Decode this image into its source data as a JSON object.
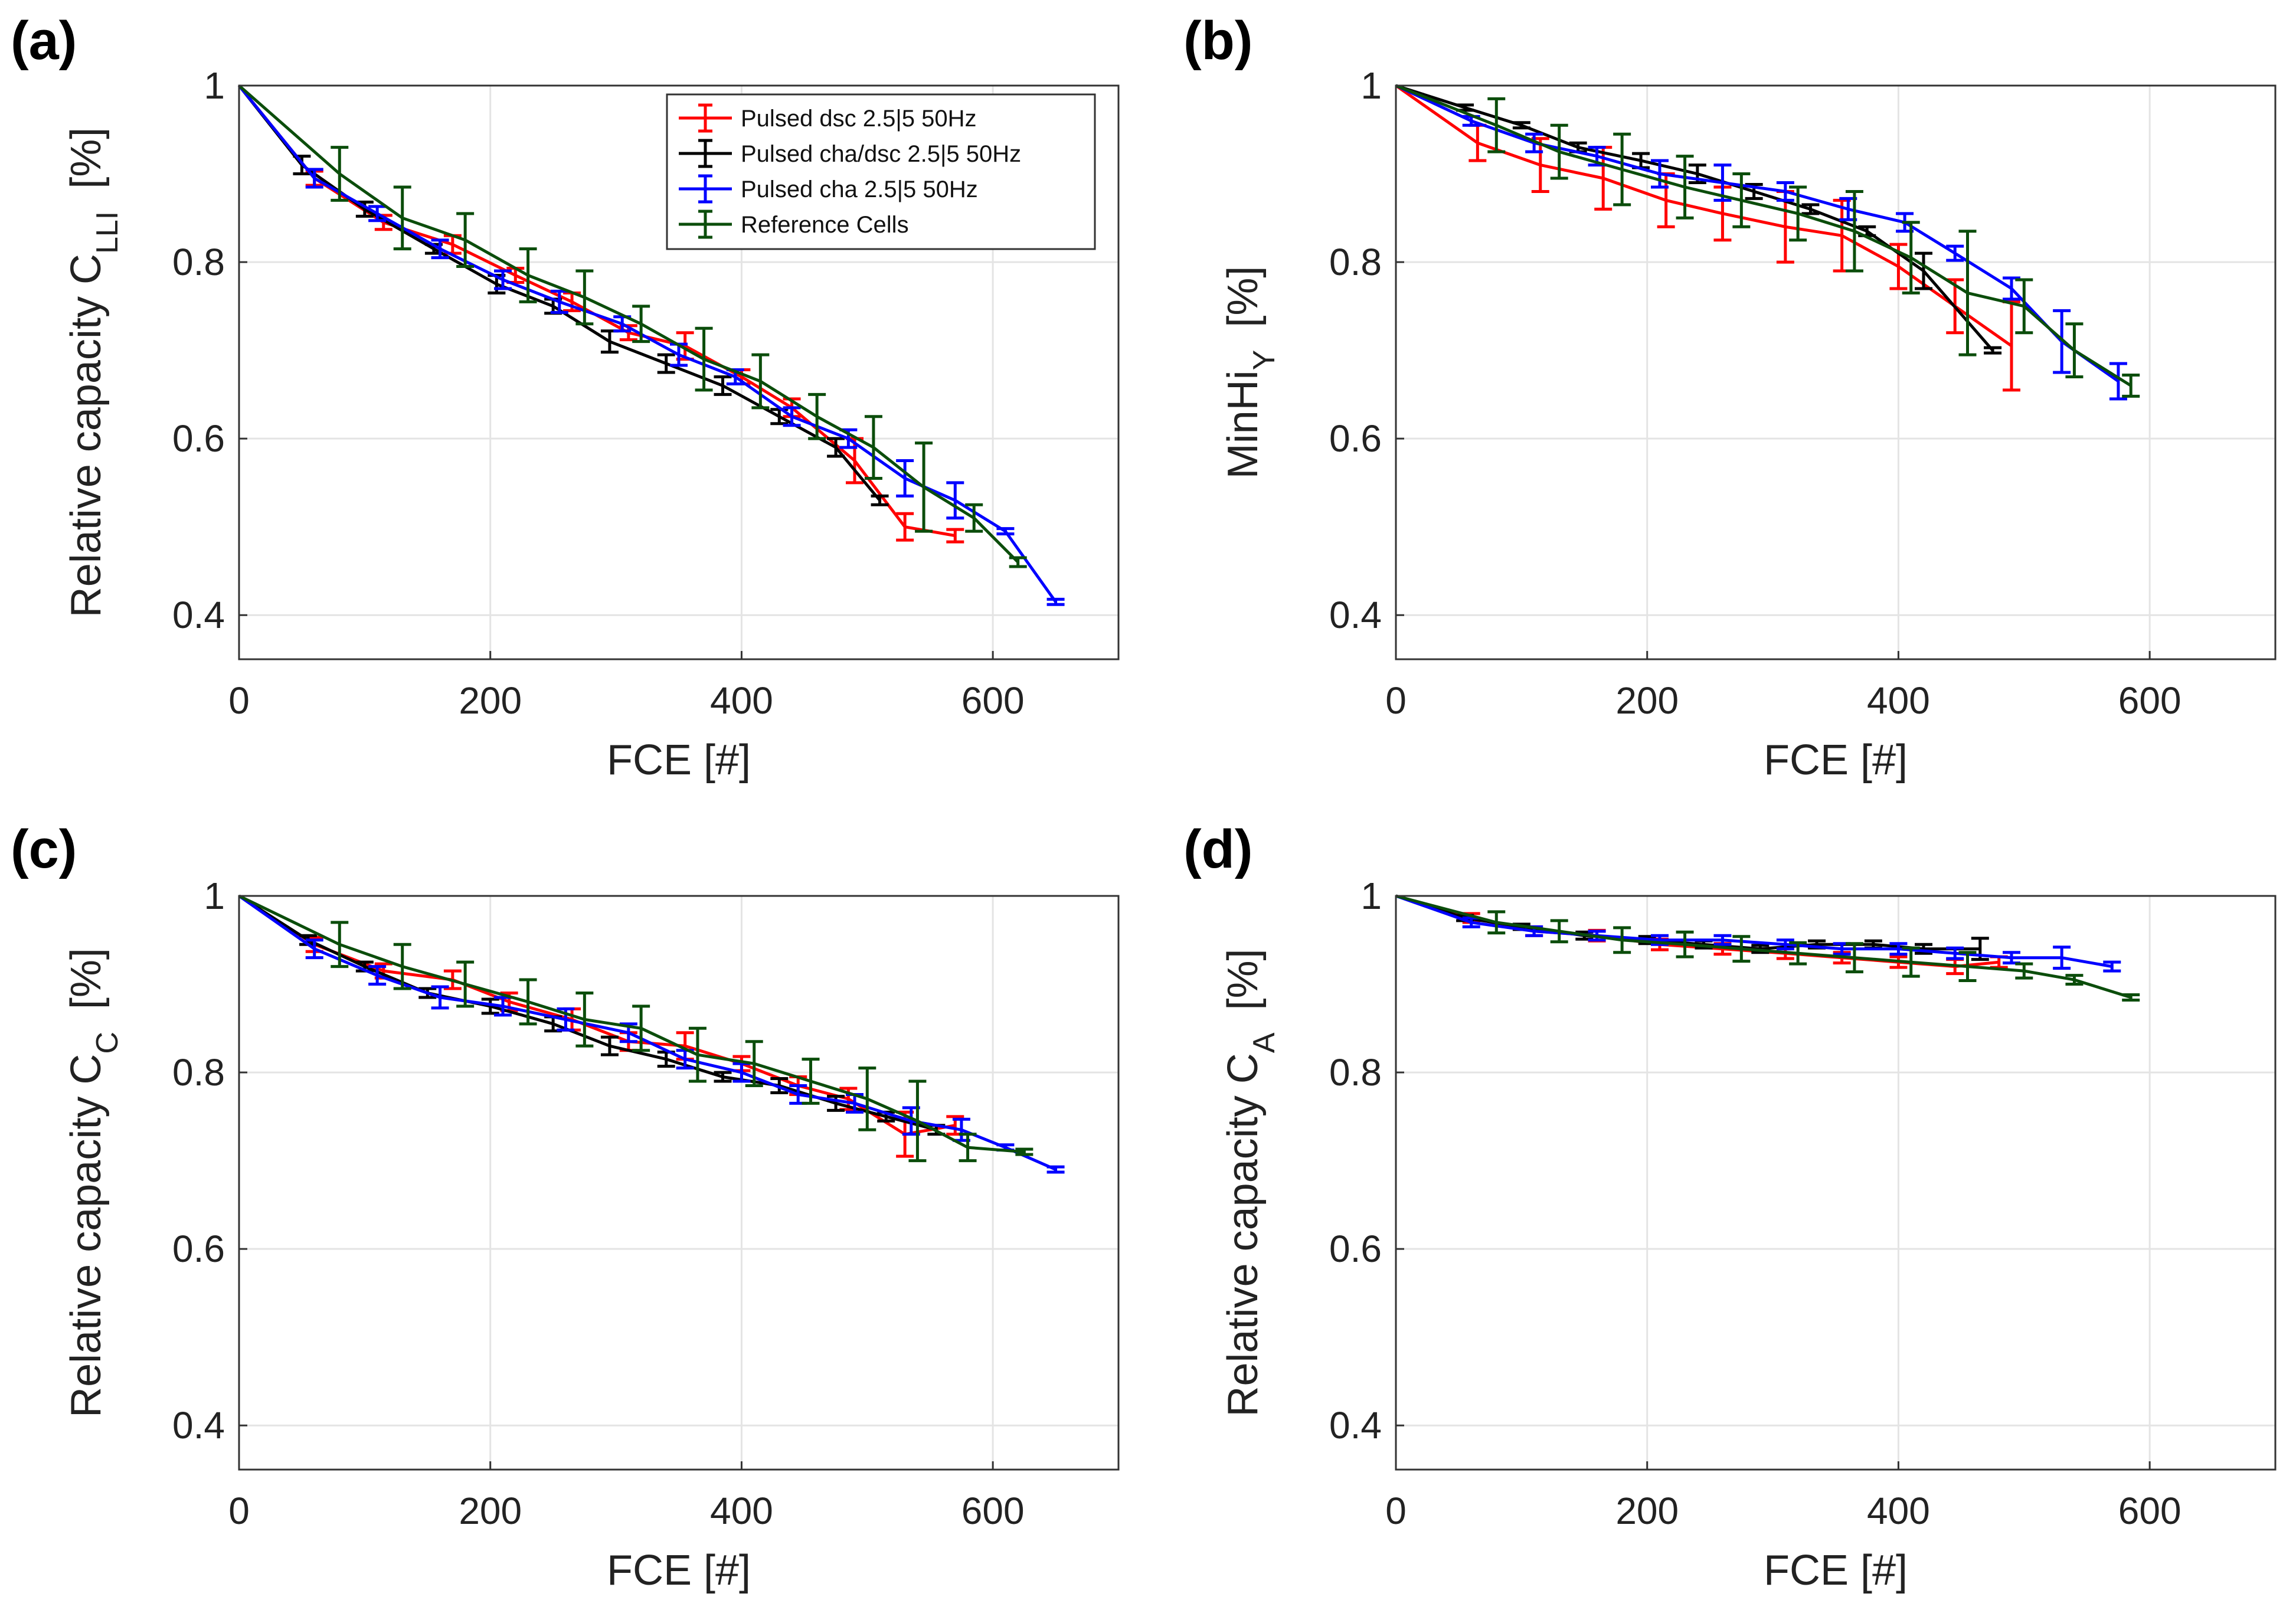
{
  "figure": {
    "legend": [
      {
        "name": "Pulsed dsc 2.5|5 50Hz",
        "color": "#ff0000"
      },
      {
        "name": "Pulsed cha/dsc 2.5|5 50Hz",
        "color": "#000000"
      },
      {
        "name": "Pulsed cha 2.5|5 50Hz",
        "color": "#0000ff"
      },
      {
        "name": "Reference Cells",
        "color": "#0b4d0b"
      }
    ]
  },
  "chart_data": [
    {
      "panel": "(a)",
      "type": "line",
      "ylabel_main": "Relative capacity C",
      "ylabel_sub": "LLI",
      "ylabel_unit": "[%]",
      "xlabel": "FCE [#]",
      "xlim": [
        0,
        700
      ],
      "ylim": [
        0.35,
        1.0
      ],
      "xticks": [
        0,
        200,
        400,
        600
      ],
      "yticks": [
        0.4,
        0.6,
        0.8,
        1
      ],
      "xtick_labels": [
        "0",
        "200",
        "400",
        "600"
      ],
      "ytick_labels": [
        "0.4",
        "0.6",
        "0.8",
        "1"
      ],
      "grid": true,
      "legend_position": "top-right",
      "series": [
        {
          "name": "Pulsed dsc 2.5|5 50Hz",
          "color": "#ff0000",
          "x": [
            0,
            60,
            115,
            170,
            220,
            265,
            310,
            355,
            400,
            440,
            490,
            530,
            570
          ],
          "y": [
            1.0,
            0.895,
            0.845,
            0.82,
            0.785,
            0.755,
            0.72,
            0.705,
            0.67,
            0.635,
            0.575,
            0.5,
            0.49
          ],
          "err": [
            0,
            0.008,
            0.008,
            0.01,
            0.008,
            0.01,
            0.008,
            0.015,
            0.008,
            0.01,
            0.025,
            0.015,
            0.007
          ]
        },
        {
          "name": "Pulsed cha/dsc 2.5|5 50Hz",
          "color": "#000000",
          "x": [
            0,
            50,
            100,
            155,
            205,
            250,
            295,
            340,
            385,
            430,
            475,
            510
          ],
          "y": [
            1.0,
            0.91,
            0.86,
            0.815,
            0.775,
            0.75,
            0.71,
            0.685,
            0.66,
            0.625,
            0.59,
            0.53
          ],
          "err": [
            0,
            0.01,
            0.008,
            0.005,
            0.01,
            0.008,
            0.012,
            0.01,
            0.01,
            0.008,
            0.01,
            0.005
          ]
        },
        {
          "name": "Pulsed cha 2.5|5 50Hz",
          "color": "#0000ff",
          "x": [
            0,
            60,
            110,
            160,
            210,
            255,
            305,
            350,
            395,
            440,
            485,
            530,
            570,
            610,
            650
          ],
          "y": [
            1.0,
            0.895,
            0.855,
            0.815,
            0.78,
            0.755,
            0.73,
            0.695,
            0.67,
            0.625,
            0.6,
            0.555,
            0.53,
            0.495,
            0.415
          ],
          "err": [
            0,
            0.01,
            0.008,
            0.01,
            0.01,
            0.012,
            0.008,
            0.012,
            0.008,
            0.01,
            0.01,
            0.02,
            0.02,
            0.003,
            0.003
          ]
        },
        {
          "name": "Reference Cells",
          "color": "#0b4d0b",
          "x": [
            0,
            80,
            130,
            180,
            230,
            275,
            320,
            370,
            415,
            460,
            505,
            545,
            585,
            620
          ],
          "y": [
            1.0,
            0.9,
            0.85,
            0.825,
            0.785,
            0.76,
            0.73,
            0.69,
            0.665,
            0.625,
            0.59,
            0.545,
            0.51,
            0.46
          ],
          "err": [
            0,
            0.03,
            0.035,
            0.03,
            0.03,
            0.03,
            0.02,
            0.035,
            0.03,
            0.025,
            0.035,
            0.05,
            0.015,
            0.005
          ]
        }
      ]
    },
    {
      "panel": "(b)",
      "type": "line",
      "ylabel_main": "MinHi",
      "ylabel_sub": "Y",
      "ylabel_unit": "[%]",
      "xlabel": "FCE [#]",
      "xlim": [
        0,
        700
      ],
      "ylim": [
        0.35,
        1.0
      ],
      "xticks": [
        0,
        200,
        400,
        600
      ],
      "yticks": [
        0.4,
        0.6,
        0.8,
        1
      ],
      "xtick_labels": [
        "0",
        "200",
        "400",
        "600"
      ],
      "ytick_labels": [
        "0.4",
        "0.6",
        "0.8",
        "1"
      ],
      "grid": true,
      "series": [
        {
          "name": "Pulsed dsc 2.5|5 50Hz",
          "color": "#ff0000",
          "x": [
            0,
            65,
            115,
            165,
            215,
            260,
            310,
            355,
            400,
            445,
            490
          ],
          "y": [
            1.0,
            0.935,
            0.91,
            0.895,
            0.87,
            0.855,
            0.84,
            0.83,
            0.795,
            0.75,
            0.705
          ],
          "err": [
            0,
            0.02,
            0.03,
            0.035,
            0.03,
            0.03,
            0.04,
            0.04,
            0.025,
            0.03,
            0.05
          ]
        },
        {
          "name": "Pulsed cha/dsc 2.5|5 50Hz",
          "color": "#000000",
          "x": [
            0,
            55,
            100,
            145,
            195,
            240,
            285,
            330,
            375,
            420,
            475
          ],
          "y": [
            1.0,
            0.975,
            0.955,
            0.93,
            0.915,
            0.9,
            0.88,
            0.86,
            0.835,
            0.79,
            0.7
          ],
          "err": [
            0,
            0.003,
            0.003,
            0.005,
            0.008,
            0.01,
            0.008,
            0.005,
            0.005,
            0.02,
            0.003
          ]
        },
        {
          "name": "Pulsed cha 2.5|5 50Hz",
          "color": "#0000ff",
          "x": [
            0,
            60,
            110,
            160,
            210,
            260,
            310,
            360,
            405,
            445,
            490,
            530,
            575
          ],
          "y": [
            1.0,
            0.96,
            0.935,
            0.92,
            0.9,
            0.89,
            0.88,
            0.86,
            0.845,
            0.81,
            0.77,
            0.71,
            0.665
          ],
          "err": [
            0,
            0.005,
            0.01,
            0.01,
            0.015,
            0.02,
            0.01,
            0.012,
            0.01,
            0.008,
            0.012,
            0.035,
            0.02
          ]
        },
        {
          "name": "Reference Cells",
          "color": "#0b4d0b",
          "x": [
            0,
            80,
            130,
            180,
            230,
            275,
            320,
            365,
            410,
            455,
            500,
            540,
            585
          ],
          "y": [
            1.0,
            0.955,
            0.925,
            0.905,
            0.885,
            0.87,
            0.855,
            0.835,
            0.805,
            0.765,
            0.75,
            0.7,
            0.66
          ],
          "err": [
            0,
            0.03,
            0.03,
            0.04,
            0.035,
            0.03,
            0.03,
            0.045,
            0.04,
            0.07,
            0.03,
            0.03,
            0.012
          ]
        }
      ]
    },
    {
      "panel": "(c)",
      "type": "line",
      "ylabel_main": "Relative capacity C",
      "ylabel_sub": "C",
      "ylabel_unit": "[%]",
      "xlabel": "FCE [#]",
      "xlim": [
        0,
        700
      ],
      "ylim": [
        0.35,
        1.0
      ],
      "xticks": [
        0,
        200,
        400,
        600
      ],
      "yticks": [
        0.4,
        0.6,
        0.8,
        1
      ],
      "xtick_labels": [
        "0",
        "200",
        "400",
        "600"
      ],
      "ytick_labels": [
        "0.4",
        "0.6",
        "0.8",
        "1"
      ],
      "grid": true,
      "series": [
        {
          "name": "Pulsed dsc 2.5|5 50Hz",
          "color": "#ff0000",
          "x": [
            0,
            60,
            115,
            170,
            215,
            265,
            310,
            355,
            400,
            445,
            485,
            530,
            570
          ],
          "y": [
            1.0,
            0.945,
            0.915,
            0.905,
            0.88,
            0.86,
            0.835,
            0.83,
            0.81,
            0.785,
            0.77,
            0.73,
            0.74
          ],
          "err": [
            0,
            0.008,
            0.008,
            0.01,
            0.01,
            0.012,
            0.01,
            0.015,
            0.008,
            0.01,
            0.012,
            0.025,
            0.01
          ]
        },
        {
          "name": "Pulsed cha/dsc 2.5|5 50Hz",
          "color": "#000000",
          "x": [
            0,
            55,
            100,
            150,
            200,
            250,
            295,
            340,
            385,
            430,
            475,
            515,
            555
          ],
          "y": [
            1.0,
            0.95,
            0.92,
            0.89,
            0.875,
            0.855,
            0.83,
            0.815,
            0.795,
            0.785,
            0.765,
            0.75,
            0.735
          ],
          "err": [
            0,
            0.005,
            0.005,
            0.005,
            0.008,
            0.008,
            0.01,
            0.008,
            0.005,
            0.008,
            0.008,
            0.005,
            0.005
          ]
        },
        {
          "name": "Pulsed cha 2.5|5 50Hz",
          "color": "#0000ff",
          "x": [
            0,
            60,
            110,
            160,
            210,
            260,
            310,
            355,
            400,
            445,
            490,
            535,
            575,
            610,
            650
          ],
          "y": [
            1.0,
            0.94,
            0.91,
            0.885,
            0.875,
            0.86,
            0.845,
            0.815,
            0.8,
            0.775,
            0.765,
            0.745,
            0.735,
            0.715,
            0.69
          ],
          "err": [
            0,
            0.01,
            0.01,
            0.012,
            0.01,
            0.012,
            0.01,
            0.01,
            0.01,
            0.01,
            0.01,
            0.015,
            0.012,
            0.003,
            0.003
          ]
        },
        {
          "name": "Reference Cells",
          "color": "#0b4d0b",
          "x": [
            0,
            80,
            130,
            180,
            230,
            275,
            320,
            365,
            410,
            455,
            500,
            540,
            580,
            625
          ],
          "y": [
            1.0,
            0.945,
            0.92,
            0.9,
            0.88,
            0.86,
            0.85,
            0.82,
            0.81,
            0.79,
            0.77,
            0.745,
            0.715,
            0.71
          ],
          "err": [
            0,
            0.025,
            0.025,
            0.025,
            0.025,
            0.03,
            0.025,
            0.03,
            0.025,
            0.025,
            0.035,
            0.045,
            0.015,
            0.003
          ]
        }
      ]
    },
    {
      "panel": "(d)",
      "type": "line",
      "ylabel_main": "Relative capacity C",
      "ylabel_sub": "A",
      "ylabel_unit": "[%]",
      "xlabel": "FCE [#]",
      "xlim": [
        0,
        700
      ],
      "ylim": [
        0.35,
        1.0
      ],
      "xticks": [
        0,
        200,
        400,
        600
      ],
      "yticks": [
        0.4,
        0.6,
        0.8,
        1
      ],
      "xtick_labels": [
        "0",
        "200",
        "400",
        "600"
      ],
      "ytick_labels": [
        "0.4",
        "0.6",
        "0.8",
        "1"
      ],
      "grid": true,
      "series": [
        {
          "name": "Pulsed dsc 2.5|5 50Hz",
          "color": "#ff0000",
          "x": [
            0,
            60,
            110,
            160,
            210,
            260,
            310,
            355,
            400,
            445,
            480
          ],
          "y": [
            1.0,
            0.975,
            0.96,
            0.955,
            0.945,
            0.94,
            0.935,
            0.93,
            0.925,
            0.92,
            0.925
          ],
          "err": [
            0,
            0.005,
            0.005,
            0.006,
            0.006,
            0.006,
            0.006,
            0.006,
            0.006,
            0.008,
            0.006
          ]
        },
        {
          "name": "Pulsed cha/dsc 2.5|5 50Hz",
          "color": "#000000",
          "x": [
            0,
            55,
            100,
            150,
            200,
            245,
            290,
            335,
            380,
            420,
            465
          ],
          "y": [
            1.0,
            0.975,
            0.965,
            0.955,
            0.95,
            0.945,
            0.94,
            0.945,
            0.945,
            0.94,
            0.94
          ],
          "err": [
            0,
            0.003,
            0.003,
            0.004,
            0.004,
            0.004,
            0.004,
            0.004,
            0.004,
            0.005,
            0.012
          ]
        },
        {
          "name": "Pulsed cha 2.5|5 50Hz",
          "color": "#0000ff",
          "x": [
            0,
            60,
            110,
            160,
            210,
            260,
            310,
            355,
            400,
            445,
            490,
            530,
            570
          ],
          "y": [
            1.0,
            0.97,
            0.96,
            0.955,
            0.95,
            0.95,
            0.945,
            0.94,
            0.94,
            0.935,
            0.93,
            0.93,
            0.92
          ],
          "err": [
            0,
            0.005,
            0.005,
            0.005,
            0.005,
            0.005,
            0.005,
            0.006,
            0.006,
            0.006,
            0.006,
            0.012,
            0.005
          ]
        },
        {
          "name": "Reference Cells",
          "color": "#0b4d0b",
          "x": [
            0,
            80,
            130,
            180,
            230,
            275,
            320,
            365,
            410,
            455,
            500,
            540,
            585
          ],
          "y": [
            1.0,
            0.97,
            0.96,
            0.95,
            0.945,
            0.94,
            0.935,
            0.93,
            0.925,
            0.92,
            0.915,
            0.905,
            0.885
          ],
          "err": [
            0,
            0.012,
            0.012,
            0.014,
            0.014,
            0.014,
            0.012,
            0.016,
            0.016,
            0.016,
            0.008,
            0.005,
            0.003
          ]
        }
      ]
    }
  ]
}
